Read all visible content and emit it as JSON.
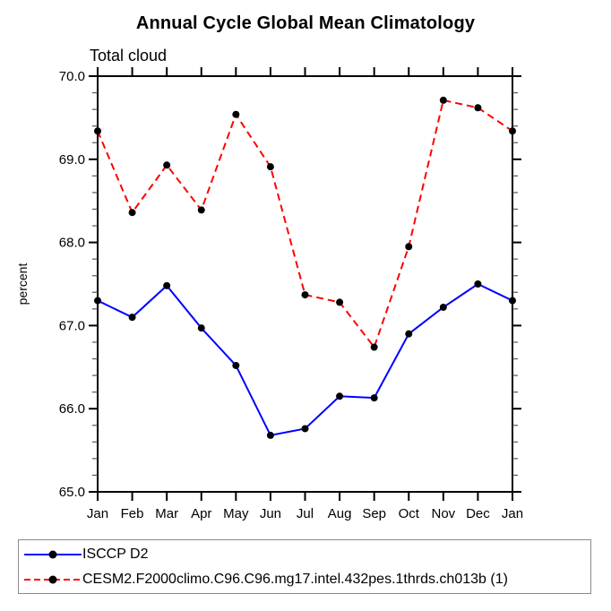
{
  "title": "Annual Cycle Global Mean Climatology",
  "subtitle": "Total cloud",
  "chart_data": {
    "type": "line",
    "title": "Annual Cycle Global Mean Climatology",
    "subtitle": "Total cloud",
    "xlabel": "",
    "ylabel": "percent",
    "categories": [
      "Jan",
      "Feb",
      "Mar",
      "Apr",
      "May",
      "Jun",
      "Jul",
      "Aug",
      "Sep",
      "Oct",
      "Nov",
      "Dec",
      "Jan"
    ],
    "ylim": [
      65.0,
      70.0
    ],
    "ytick_major": 1.0,
    "ytick_minor": 0.2,
    "ytick_labels": [
      "65.0",
      "66.0",
      "67.0",
      "68.0",
      "69.0",
      "70.0"
    ],
    "grid": false,
    "legend_position": "bottom-left-box",
    "axis_color": "#000000",
    "marker_color": "#000000",
    "series": [
      {
        "name": "ISCCP D2",
        "color": "#0000ff",
        "style": "solid",
        "marker": "filled-circle",
        "values": [
          67.3,
          67.1,
          67.48,
          66.97,
          66.52,
          65.68,
          65.76,
          66.15,
          66.13,
          66.9,
          67.22,
          67.5,
          67.3
        ]
      },
      {
        "name": "CESM2.F2000climo.C96.C96.mg17.intel.432pes.1thrds.ch013b (1)",
        "color": "#ff0000",
        "style": "dashed",
        "marker": "filled-circle",
        "values": [
          69.34,
          68.36,
          68.93,
          68.39,
          69.54,
          68.91,
          67.37,
          67.28,
          66.74,
          67.95,
          69.71,
          69.62,
          69.34
        ]
      }
    ]
  }
}
